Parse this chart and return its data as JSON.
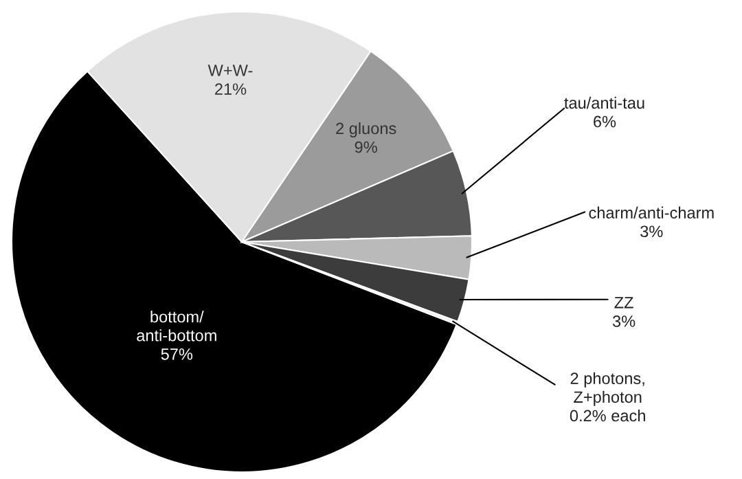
{
  "chart_data": {
    "type": "pie",
    "categories": [
      "bottom/\nanti-bottom",
      "W+W-",
      "2 gluons",
      "tau/anti-tau",
      "charm/anti-charm",
      "ZZ",
      "2 photons,\nZ+photon"
    ],
    "values": [
      57,
      21,
      9,
      6,
      3,
      3,
      0.2
    ],
    "value_labels": [
      "57%",
      "21%",
      "9%",
      "6%",
      "3%",
      "3%",
      "0.2% each"
    ],
    "colors": [
      "#000000",
      "#e2e2e2",
      "#9b9b9b",
      "#575757",
      "#bababa",
      "#3c3c3c",
      "#f2f2f2"
    ]
  }
}
